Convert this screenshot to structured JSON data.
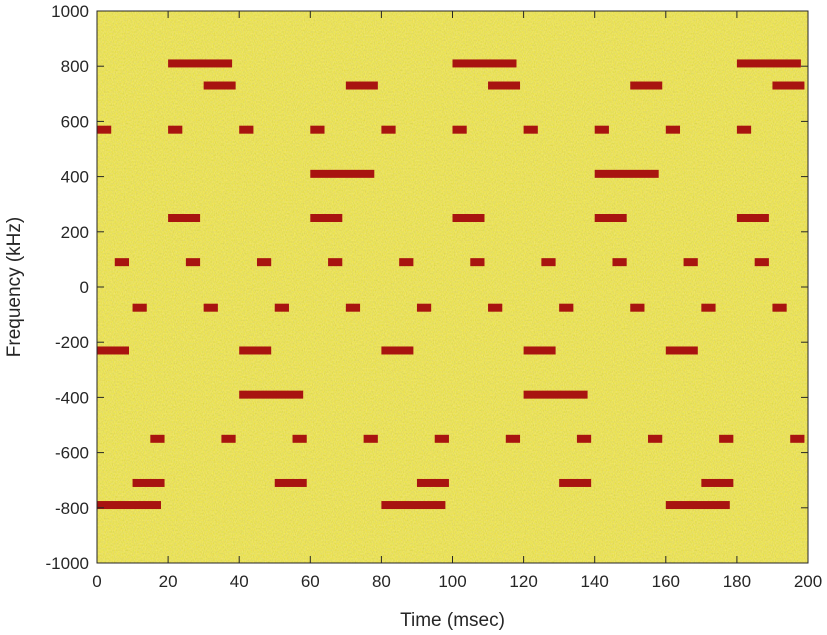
{
  "chart_data": {
    "type": "heatmap",
    "title": "",
    "xlabel": "Time (msec)",
    "ylabel": "Frequency (kHz)",
    "xlim": [
      0,
      200
    ],
    "ylim": [
      -1000,
      1000
    ],
    "x_ticks": [
      0,
      20,
      40,
      60,
      80,
      100,
      120,
      140,
      160,
      180,
      200
    ],
    "y_ticks": [
      -1000,
      -800,
      -600,
      -400,
      -200,
      0,
      200,
      400,
      600,
      800,
      1000
    ],
    "grid": false,
    "colors": {
      "background": "#f6d81a",
      "noise": [
        "#ffee3a",
        "#f2c416",
        "#e9e05a",
        "#f4a926",
        "#c9e07a"
      ],
      "signal": "#a81410",
      "axis": "#262626"
    },
    "segments": [
      {
        "t_start": 0,
        "t_end": 4,
        "freq": 570
      },
      {
        "t_start": 20,
        "t_end": 24,
        "freq": 570
      },
      {
        "t_start": 40,
        "t_end": 44,
        "freq": 570
      },
      {
        "t_start": 60,
        "t_end": 64,
        "freq": 570
      },
      {
        "t_start": 80,
        "t_end": 84,
        "freq": 570
      },
      {
        "t_start": 100,
        "t_end": 104,
        "freq": 570
      },
      {
        "t_start": 120,
        "t_end": 124,
        "freq": 570
      },
      {
        "t_start": 140,
        "t_end": 144,
        "freq": 570
      },
      {
        "t_start": 160,
        "t_end": 164,
        "freq": 570
      },
      {
        "t_start": 180,
        "t_end": 184,
        "freq": 570
      },
      {
        "t_start": 20,
        "t_end": 38,
        "freq": 810
      },
      {
        "t_start": 100,
        "t_end": 118,
        "freq": 810
      },
      {
        "t_start": 180,
        "t_end": 198,
        "freq": 810
      },
      {
        "t_start": 30,
        "t_end": 39,
        "freq": 730
      },
      {
        "t_start": 70,
        "t_end": 79,
        "freq": 730
      },
      {
        "t_start": 110,
        "t_end": 119,
        "freq": 730
      },
      {
        "t_start": 150,
        "t_end": 159,
        "freq": 730
      },
      {
        "t_start": 190,
        "t_end": 199,
        "freq": 730
      },
      {
        "t_start": 60,
        "t_end": 78,
        "freq": 410
      },
      {
        "t_start": 140,
        "t_end": 158,
        "freq": 410
      },
      {
        "t_start": 20,
        "t_end": 29,
        "freq": 250
      },
      {
        "t_start": 60,
        "t_end": 69,
        "freq": 250
      },
      {
        "t_start": 100,
        "t_end": 109,
        "freq": 250
      },
      {
        "t_start": 140,
        "t_end": 149,
        "freq": 250
      },
      {
        "t_start": 180,
        "t_end": 189,
        "freq": 250
      },
      {
        "t_start": 5,
        "t_end": 9,
        "freq": 90
      },
      {
        "t_start": 25,
        "t_end": 29,
        "freq": 90
      },
      {
        "t_start": 45,
        "t_end": 49,
        "freq": 90
      },
      {
        "t_start": 65,
        "t_end": 69,
        "freq": 90
      },
      {
        "t_start": 85,
        "t_end": 89,
        "freq": 90
      },
      {
        "t_start": 105,
        "t_end": 109,
        "freq": 90
      },
      {
        "t_start": 125,
        "t_end": 129,
        "freq": 90
      },
      {
        "t_start": 145,
        "t_end": 149,
        "freq": 90
      },
      {
        "t_start": 165,
        "t_end": 169,
        "freq": 90
      },
      {
        "t_start": 185,
        "t_end": 189,
        "freq": 90
      },
      {
        "t_start": 10,
        "t_end": 14,
        "freq": -75
      },
      {
        "t_start": 30,
        "t_end": 34,
        "freq": -75
      },
      {
        "t_start": 50,
        "t_end": 54,
        "freq": -75
      },
      {
        "t_start": 70,
        "t_end": 74,
        "freq": -75
      },
      {
        "t_start": 90,
        "t_end": 94,
        "freq": -75
      },
      {
        "t_start": 110,
        "t_end": 114,
        "freq": -75
      },
      {
        "t_start": 130,
        "t_end": 134,
        "freq": -75
      },
      {
        "t_start": 150,
        "t_end": 154,
        "freq": -75
      },
      {
        "t_start": 170,
        "t_end": 174,
        "freq": -75
      },
      {
        "t_start": 190,
        "t_end": 194,
        "freq": -75
      },
      {
        "t_start": 0,
        "t_end": 9,
        "freq": -230
      },
      {
        "t_start": 40,
        "t_end": 49,
        "freq": -230
      },
      {
        "t_start": 80,
        "t_end": 89,
        "freq": -230
      },
      {
        "t_start": 120,
        "t_end": 129,
        "freq": -230
      },
      {
        "t_start": 160,
        "t_end": 169,
        "freq": -230
      },
      {
        "t_start": 40,
        "t_end": 58,
        "freq": -390
      },
      {
        "t_start": 120,
        "t_end": 138,
        "freq": -390
      },
      {
        "t_start": 15,
        "t_end": 19,
        "freq": -550
      },
      {
        "t_start": 35,
        "t_end": 39,
        "freq": -550
      },
      {
        "t_start": 55,
        "t_end": 59,
        "freq": -550
      },
      {
        "t_start": 75,
        "t_end": 79,
        "freq": -550
      },
      {
        "t_start": 95,
        "t_end": 99,
        "freq": -550
      },
      {
        "t_start": 115,
        "t_end": 119,
        "freq": -550
      },
      {
        "t_start": 135,
        "t_end": 139,
        "freq": -550
      },
      {
        "t_start": 155,
        "t_end": 159,
        "freq": -550
      },
      {
        "t_start": 175,
        "t_end": 179,
        "freq": -550
      },
      {
        "t_start": 195,
        "t_end": 199,
        "freq": -550
      },
      {
        "t_start": 10,
        "t_end": 19,
        "freq": -710
      },
      {
        "t_start": 50,
        "t_end": 59,
        "freq": -710
      },
      {
        "t_start": 90,
        "t_end": 99,
        "freq": -710
      },
      {
        "t_start": 130,
        "t_end": 139,
        "freq": -710
      },
      {
        "t_start": 170,
        "t_end": 179,
        "freq": -710
      },
      {
        "t_start": 0,
        "t_end": 18,
        "freq": -790
      },
      {
        "t_start": 80,
        "t_end": 98,
        "freq": -790
      },
      {
        "t_start": 160,
        "t_end": 178,
        "freq": -790
      }
    ]
  }
}
